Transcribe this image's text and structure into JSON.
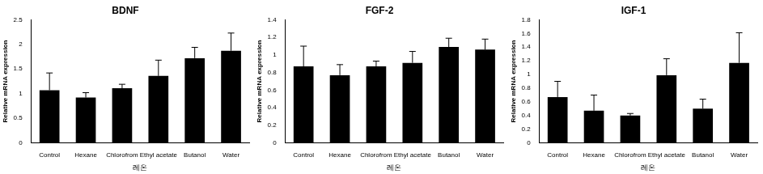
{
  "chart_data": [
    {
      "type": "bar",
      "title": "BDNF",
      "categories": [
        "Control",
        "Hexane",
        "Chlorofrom",
        "Ethyl acetate",
        "Butanol",
        "Water"
      ],
      "values": [
        1.07,
        0.92,
        1.11,
        1.36,
        1.72,
        1.87
      ],
      "errors": [
        0.35,
        0.1,
        0.08,
        0.32,
        0.22,
        0.36
      ],
      "color": "#000000",
      "ylim": [
        0,
        2.5
      ],
      "yticks": [
        0,
        0.5,
        1,
        1.5,
        2,
        2.5
      ],
      "grid": false,
      "xlabel": "레온",
      "ylabel": "Relative mRNA expression"
    },
    {
      "type": "bar",
      "title": "FGF-2",
      "categories": [
        "Control",
        "Hexane",
        "Chlorofrom",
        "Ethyl acetate",
        "Butanol",
        "Water"
      ],
      "values": [
        0.87,
        0.77,
        0.87,
        0.91,
        1.09,
        1.06
      ],
      "errors": [
        0.23,
        0.12,
        0.06,
        0.13,
        0.1,
        0.12
      ],
      "color": "#000000",
      "ylim": [
        0,
        1.4
      ],
      "yticks": [
        0,
        0.2,
        0.4,
        0.6,
        0.8,
        1,
        1.2,
        1.4
      ],
      "grid": false,
      "xlabel": "레온",
      "ylabel": "Relative mRNA expression"
    },
    {
      "type": "bar",
      "title": "IGF-1",
      "categories": [
        "Control",
        "Hexane",
        "Chlorofrom",
        "Ethyl acetate",
        "Butanol",
        "Water"
      ],
      "values": [
        0.67,
        0.47,
        0.4,
        0.99,
        0.5,
        1.17
      ],
      "errors": [
        0.23,
        0.23,
        0.03,
        0.24,
        0.14,
        0.44
      ],
      "color": "#000000",
      "ylim": [
        0,
        1.8
      ],
      "yticks": [
        0,
        0.2,
        0.4,
        0.6,
        0.8,
        1,
        1.2,
        1.4,
        1.6,
        1.8
      ],
      "grid": false,
      "xlabel": "레온",
      "ylabel": "Relative mRNA expression"
    }
  ]
}
